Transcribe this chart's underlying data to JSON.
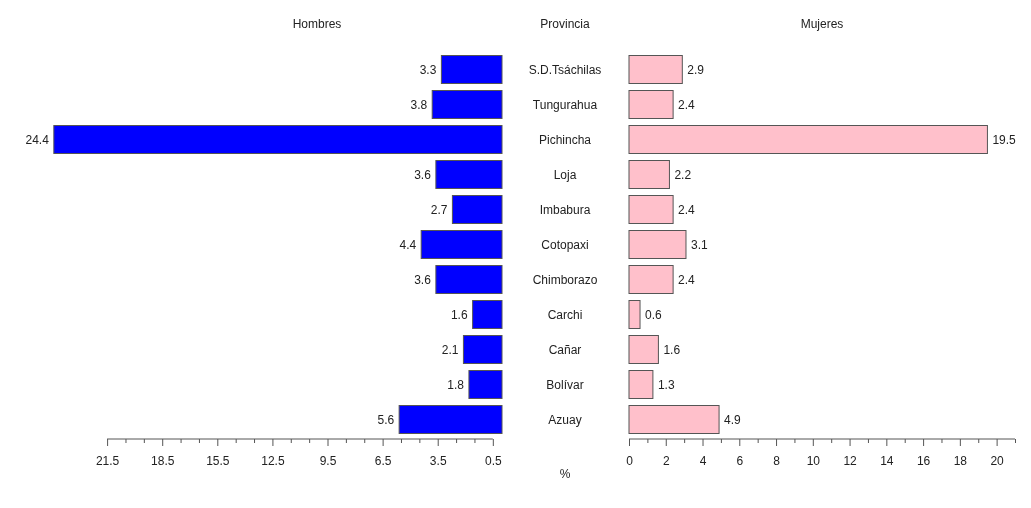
{
  "chart_data": [
    {
      "type": "bar",
      "orientation": "horizontal",
      "title": "Hombres",
      "ylabel": "Provincia",
      "xlabel": "%",
      "categories": [
        "S.D.Tsáchilas",
        "Tungurahua",
        "Pichincha",
        "Loja",
        "Imbabura",
        "Cotopaxi",
        "Chimborazo",
        "Carchi",
        "Cañar",
        "Bolívar",
        "Azuay"
      ],
      "values": [
        3.3,
        3.8,
        24.4,
        3.6,
        2.7,
        4.4,
        3.6,
        1.6,
        2.1,
        1.8,
        5.6
      ],
      "color": "#0000ff",
      "xlim": [
        24.5,
        0
      ],
      "xticks": [
        21.5,
        {
          "value": 20.5,
          "label": null
        },
        {
          "value": 19.5,
          "label": null
        },
        18.5,
        {
          "value": 17.5,
          "label": null
        },
        {
          "value": 16.5,
          "label": null
        },
        15.5,
        {
          "value": 14.5,
          "label": null
        },
        {
          "value": 13.5,
          "label": null
        },
        12.5,
        {
          "value": 11.5,
          "label": null
        },
        {
          "value": 10.5,
          "label": null
        },
        9.5,
        {
          "value": 8.5,
          "label": null
        },
        {
          "value": 7.5,
          "label": null
        },
        6.5,
        {
          "value": 5.5,
          "label": null
        },
        {
          "value": 4.5,
          "label": null
        },
        3.5,
        {
          "value": 2.5,
          "label": null
        },
        {
          "value": 1.5,
          "label": null
        },
        0.5
      ],
      "data_labels": true
    },
    {
      "type": "bar",
      "orientation": "horizontal",
      "title": "Mujeres",
      "categories": [
        "S.D.Tsáchilas",
        "Tungurahua",
        "Pichincha",
        "Loja",
        "Imbabura",
        "Cotopaxi",
        "Chimborazo",
        "Carchi",
        "Cañar",
        "Bolívar",
        "Azuay"
      ],
      "values": [
        2.9,
        2.4,
        19.5,
        2.2,
        2.4,
        3.1,
        2.4,
        0.6,
        1.6,
        1.3,
        4.9
      ],
      "color": "#ffc0cb",
      "xlim": [
        0,
        21
      ],
      "xticks": [
        0,
        {
          "value": 1,
          "label": null
        },
        2,
        {
          "value": 3,
          "label": null
        },
        4,
        {
          "value": 5,
          "label": null
        },
        6,
        {
          "value": 7,
          "label": null
        },
        8,
        {
          "value": 9,
          "label": null
        },
        10,
        {
          "value": 11,
          "label": null
        },
        12,
        {
          "value": 13,
          "label": null
        },
        14,
        {
          "value": 15,
          "label": null
        },
        16,
        {
          "value": 17,
          "label": null
        },
        18,
        {
          "value": 19,
          "label": null
        },
        20,
        {
          "value": 21,
          "label": null
        }
      ],
      "tick_labels": "x",
      "data_labels": true
    }
  ]
}
